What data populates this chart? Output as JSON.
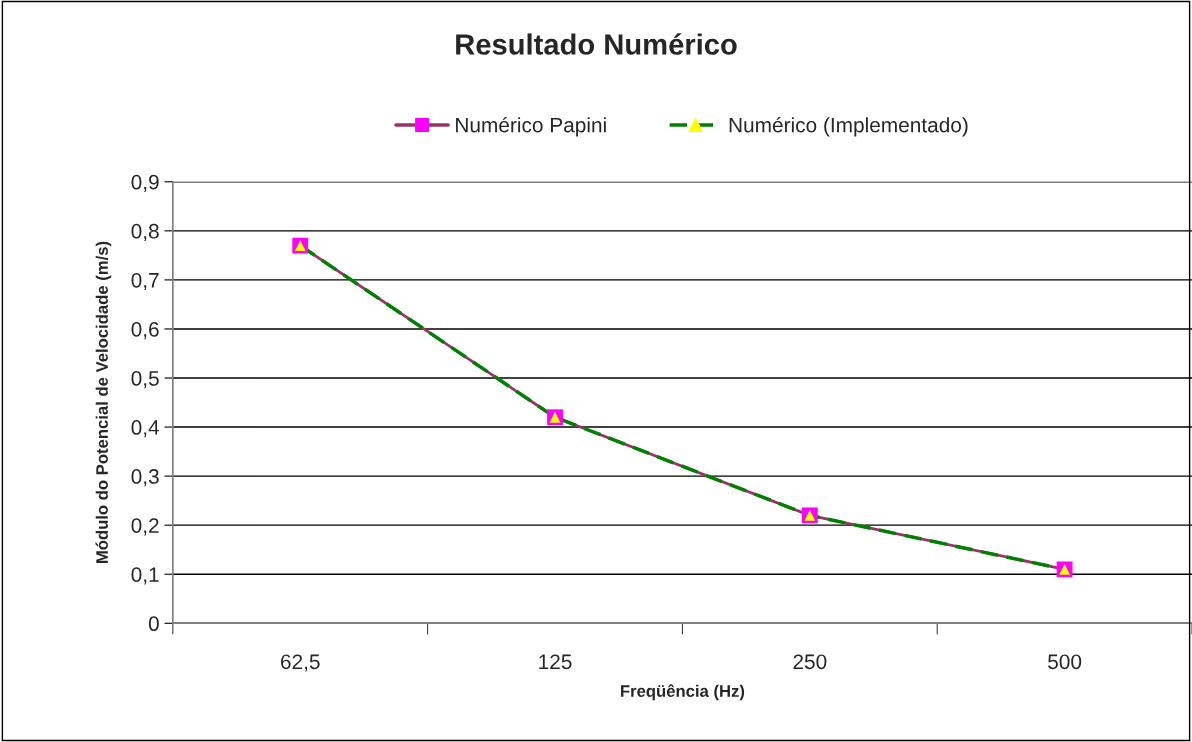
{
  "chart_data": {
    "type": "line",
    "title": "Resultado Numérico",
    "xlabel": "Freqüência (Hz)",
    "ylabel": "Módulo do Potencial de Velocidade (m/s)",
    "categories": [
      "62,5",
      "125",
      "250",
      "500"
    ],
    "series": [
      {
        "name": "Numérico Papini",
        "color": "#993366",
        "colors": [
          "#ff00ff",
          "#ff00ff",
          "#ff00ff",
          "#ff00ff"
        ],
        "marker": "square",
        "line_style": "solid",
        "values": [
          0.77,
          0.42,
          0.22,
          0.11
        ]
      },
      {
        "name": "Numérico (Implementado)",
        "color": "#008000",
        "colors": [
          "#ffff00",
          "#ffff00",
          "#ffff00",
          "#ffff00"
        ],
        "marker": "triangle",
        "line_style": "dashed",
        "values": [
          0.77,
          0.42,
          0.22,
          0.11
        ]
      }
    ],
    "ylim": [
      0,
      0.9
    ],
    "yticks": [
      {
        "value": 0,
        "label": "0"
      },
      {
        "value": 0.1,
        "label": "0,1"
      },
      {
        "value": 0.2,
        "label": "0,2"
      },
      {
        "value": 0.3,
        "label": "0,3"
      },
      {
        "value": 0.4,
        "label": "0,4"
      },
      {
        "value": 0.5,
        "label": "0,5"
      },
      {
        "value": 0.6,
        "label": "0,6"
      },
      {
        "value": 0.7,
        "label": "0,7"
      },
      {
        "value": 0.8,
        "label": "0,8"
      },
      {
        "value": 0.9,
        "label": "0,9"
      }
    ],
    "grid": "y",
    "legend": "top"
  }
}
